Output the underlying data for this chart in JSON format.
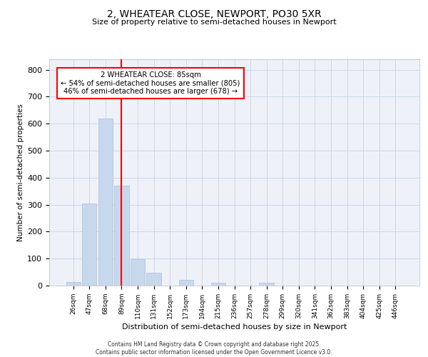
{
  "title1": "2, WHEATEAR CLOSE, NEWPORT, PO30 5XR",
  "title2": "Size of property relative to semi-detached houses in Newport",
  "xlabel": "Distribution of semi-detached houses by size in Newport",
  "ylabel": "Number of semi-detached properties",
  "categories": [
    "26sqm",
    "47sqm",
    "68sqm",
    "89sqm",
    "110sqm",
    "131sqm",
    "152sqm",
    "173sqm",
    "194sqm",
    "215sqm",
    "236sqm",
    "257sqm",
    "278sqm",
    "299sqm",
    "320sqm",
    "341sqm",
    "362sqm",
    "383sqm",
    "404sqm",
    "425sqm",
    "446sqm"
  ],
  "values": [
    12,
    305,
    620,
    370,
    97,
    48,
    0,
    22,
    0,
    10,
    0,
    0,
    10,
    0,
    0,
    0,
    0,
    0,
    0,
    0,
    0
  ],
  "bar_color": "#c8d8ec",
  "bar_edge_color": "#a8c0dc",
  "vline_x_index": 3,
  "vline_color": "red",
  "annotation_text": "2 WHEATEAR CLOSE: 85sqm\n← 54% of semi-detached houses are smaller (805)\n46% of semi-detached houses are larger (678) →",
  "annotation_box_color": "white",
  "annotation_box_edge_color": "red",
  "ylim": [
    0,
    840
  ],
  "yticks": [
    0,
    100,
    200,
    300,
    400,
    500,
    600,
    700,
    800
  ],
  "footer1": "Contains HM Land Registry data © Crown copyright and database right 2025.",
  "footer2": "Contains public sector information licensed under the Open Government Licence v3.0.",
  "bg_color": "#eef2f8",
  "grid_color": "#ccd6e8"
}
